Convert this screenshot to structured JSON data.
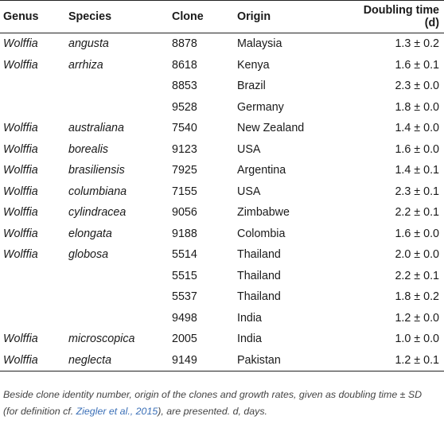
{
  "table": {
    "headers": {
      "genus": "Genus",
      "species": "Species",
      "clone": "Clone",
      "origin": "Origin",
      "doubling": "Doubling time (d)"
    },
    "rows": [
      {
        "genus": "Wolffia",
        "species": "angusta",
        "clone": "8878",
        "origin": "Malaysia",
        "doubling": "1.3 ± 0.2"
      },
      {
        "genus": "Wolffia",
        "species": "arrhiza",
        "clone": "8618",
        "origin": "Kenya",
        "doubling": "1.6 ± 0.1"
      },
      {
        "genus": "",
        "species": "",
        "clone": "8853",
        "origin": "Brazil",
        "doubling": "2.3 ± 0.0"
      },
      {
        "genus": "",
        "species": "",
        "clone": "9528",
        "origin": "Germany",
        "doubling": "1.8 ± 0.0"
      },
      {
        "genus": "Wolffia",
        "species": "australiana",
        "clone": "7540",
        "origin": "New Zealand",
        "doubling": "1.4 ± 0.0"
      },
      {
        "genus": "Wolffia",
        "species": "borealis",
        "clone": "9123",
        "origin": "USA",
        "doubling": "1.6 ± 0.0"
      },
      {
        "genus": "Wolffia",
        "species": "brasiliensis",
        "clone": "7925",
        "origin": "Argentina",
        "doubling": "1.4 ± 0.1"
      },
      {
        "genus": "Wolffia",
        "species": "columbiana",
        "clone": "7155",
        "origin": "USA",
        "doubling": "2.3 ± 0.1"
      },
      {
        "genus": "Wolffia",
        "species": "cylindracea",
        "clone": "9056",
        "origin": "Zimbabwe",
        "doubling": "2.2 ± 0.1"
      },
      {
        "genus": "Wolffia",
        "species": "elongata",
        "clone": "9188",
        "origin": "Colombia",
        "doubling": "1.6 ± 0.0"
      },
      {
        "genus": "Wolffia",
        "species": "globosa",
        "clone": "5514",
        "origin": "Thailand",
        "doubling": "2.0 ± 0.0"
      },
      {
        "genus": "",
        "species": "",
        "clone": "5515",
        "origin": "Thailand",
        "doubling": "2.2 ± 0.1"
      },
      {
        "genus": "",
        "species": "",
        "clone": "5537",
        "origin": "Thailand",
        "doubling": "1.8 ± 0.2"
      },
      {
        "genus": "",
        "species": "",
        "clone": "9498",
        "origin": "India",
        "doubling": "1.2 ± 0.0"
      },
      {
        "genus": "Wolffia",
        "species": "microscopica",
        "clone": "2005",
        "origin": "India",
        "doubling": "1.0 ± 0.0"
      },
      {
        "genus": "Wolffia",
        "species": "neglecta",
        "clone": "9149",
        "origin": "Pakistan",
        "doubling": "1.2 ± 0.1"
      }
    ]
  },
  "caption": {
    "before": "Beside clone identity number, origin of the clones and growth rates, given as doubling time ± SD (for definition cf. ",
    "reference": "Ziegler et al., 2015",
    "after": "), are presented. d, days."
  },
  "colors": {
    "text": "#1a1a1a",
    "rule": "#222222",
    "caption_text": "#444444",
    "reference_link": "#3a6fb7"
  }
}
